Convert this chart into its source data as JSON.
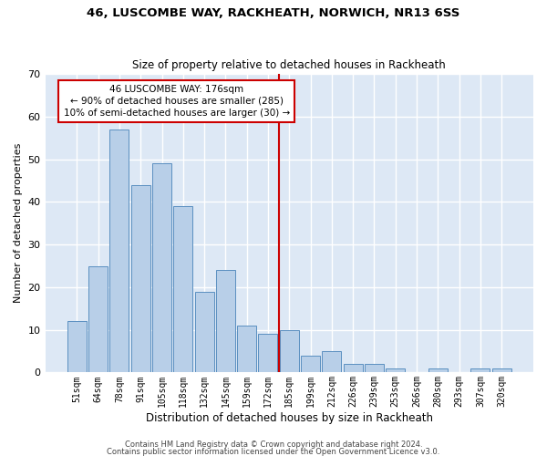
{
  "title1": "46, LUSCOMBE WAY, RACKHEATH, NORWICH, NR13 6SS",
  "title2": "Size of property relative to detached houses in Rackheath",
  "xlabel": "Distribution of detached houses by size in Rackheath",
  "ylabel": "Number of detached properties",
  "bar_labels": [
    "51sqm",
    "64sqm",
    "78sqm",
    "91sqm",
    "105sqm",
    "118sqm",
    "132sqm",
    "145sqm",
    "159sqm",
    "172sqm",
    "185sqm",
    "199sqm",
    "212sqm",
    "226sqm",
    "239sqm",
    "253sqm",
    "266sqm",
    "280sqm",
    "293sqm",
    "307sqm",
    "320sqm"
  ],
  "bar_values": [
    12,
    25,
    57,
    44,
    49,
    39,
    19,
    24,
    11,
    9,
    10,
    4,
    5,
    2,
    2,
    1,
    0,
    1,
    0,
    1,
    1
  ],
  "bar_color": "#b8cfe8",
  "bar_edge_color": "#5a8fc0",
  "vline_x": 9.5,
  "vline_color": "#cc0000",
  "annotation_text": "46 LUSCOMBE WAY: 176sqm\n← 90% of detached houses are smaller (285)\n10% of semi-detached houses are larger (30) →",
  "annotation_box_color": "white",
  "annotation_box_edge_color": "#cc0000",
  "ylim": [
    0,
    70
  ],
  "yticks": [
    0,
    10,
    20,
    30,
    40,
    50,
    60,
    70
  ],
  "background_color": "#dde8f5",
  "grid_color": "white",
  "footer1": "Contains HM Land Registry data © Crown copyright and database right 2024.",
  "footer2": "Contains public sector information licensed under the Open Government Licence v3.0."
}
